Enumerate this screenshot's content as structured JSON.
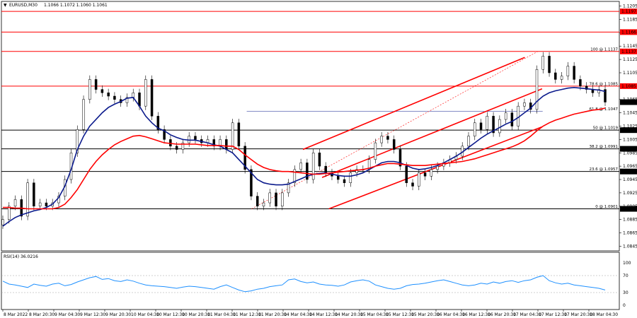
{
  "chart_data": {
    "type": "line",
    "header": {
      "symbol": "EURUSD,M30",
      "ohlc": [
        "1.1066",
        "1.1072",
        "1.1060",
        "1.1061"
      ],
      "current_price": 1.1061,
      "current_price_label": "1.1061"
    },
    "price_axis": {
      "ylim": [
        1.0838,
        1.1212
      ],
      "ticks": [
        "1.1205",
        "1.1185",
        "1.1165",
        "1.1145",
        "1.1125",
        "1.1105",
        "1.1085",
        "1.1065",
        "1.1045",
        "1.1025",
        "1.1005",
        "1.0985",
        "1.0965",
        "1.0945",
        "1.0925",
        "1.0905",
        "1.0885",
        "1.0865",
        "1.0845"
      ]
    },
    "time_axis": {
      "ticks": [
        "8 Mar 2022",
        "8 Mar 20:30",
        "9 Mar 04:30",
        "9 Mar 12:30",
        "9 Mar 20:30",
        "10 Mar 04:30",
        "10 Mar 12:30",
        "10 Mar 20:30",
        "11 Mar 04:30",
        "11 Mar 12:30",
        "11 Mar 20:30",
        "14 Mar 04:30",
        "14 Mar 12:30",
        "14 Mar 20:30",
        "15 Mar 04:30",
        "15 Mar 12:30",
        "15 Mar 20:30",
        "16 Mar 04:30",
        "16 Mar 12:30",
        "16 Mar 20:30",
        "17 Mar 04:30",
        "17 Mar 12:30",
        "17 Mar 20:30",
        "18 Mar 04:30"
      ]
    },
    "horizontal_levels": [
      {
        "price": 1.1197,
        "label": "1.1197",
        "color": "#ff0000"
      },
      {
        "price": 1.1166,
        "label": "1.1166",
        "color": "#ff0000"
      },
      {
        "price": 1.1137,
        "label": "1.1137",
        "color": "#ff0000"
      },
      {
        "price": 1.1085,
        "label": "1.1085",
        "color": "#ff0000"
      },
      {
        "price": 1.1019,
        "label": "1.1019",
        "color": "#000000"
      },
      {
        "price": 1.0991,
        "label": "1.0991",
        "color": "#000000"
      },
      {
        "price": 1.0957,
        "label": "1.0957",
        "color": "#000000"
      },
      {
        "price": 1.0901,
        "label": "1.0901",
        "color": "#000000"
      }
    ],
    "fibonacci": {
      "color": "#ff0000",
      "levels": [
        {
          "label": "100 @ 1.1137",
          "price": 1.1137
        },
        {
          "label": "78.6 @ 1.1085",
          "price": 1.1085
        },
        {
          "label": "61.8 @ 1.1047",
          "price": 1.1047
        },
        {
          "label": "50 @ 1.1019",
          "price": 1.1019
        },
        {
          "label": "38.2 @ 1.0991",
          "price": 1.0991
        },
        {
          "label": "23.6 @ 1.0957",
          "price": 1.0957
        },
        {
          "label": "0 @ 1.0901",
          "price": 1.0901
        }
      ]
    },
    "series": [
      {
        "kind": "candles",
        "color": "#000000",
        "close": [
          1.0885,
          1.0905,
          1.0915,
          1.089,
          1.094,
          1.0905,
          1.091,
          1.0905,
          1.091,
          1.092,
          1.0945,
          1.0985,
          1.102,
          1.1065,
          1.1095,
          1.108,
          1.1075,
          1.107,
          1.1065,
          1.106,
          1.1068,
          1.1075,
          1.1055,
          1.1095,
          1.104,
          1.102,
          1.1005,
          1.0995,
          1.099,
          1.1,
          1.101,
          1.1005,
          1.1,
          1.1005,
          1.0995,
          1.1005,
          1.099,
          1.103,
          1.0995,
          1.096,
          1.092,
          1.0905,
          1.091,
          1.0925,
          1.0905,
          1.0925,
          1.094,
          1.096,
          1.097,
          1.0945,
          1.0985,
          1.0965,
          1.0955,
          1.095,
          1.0945,
          1.094,
          1.0955,
          1.096,
          1.096,
          1.0975,
          1.1,
          1.101,
          1.1005,
          1.099,
          1.0965,
          1.094,
          1.0935,
          1.0955,
          1.095,
          1.096,
          1.0965,
          1.097,
          1.0975,
          1.098,
          1.0995,
          1.101,
          1.103,
          1.102,
          1.104,
          1.1015,
          1.1035,
          1.1045,
          1.1025,
          1.1055,
          1.106,
          1.105,
          1.111,
          1.113,
          1.1105,
          1.1095,
          1.11,
          1.1115,
          1.1095,
          1.1085,
          1.108,
          1.1075,
          1.108,
          1.1061
        ]
      },
      {
        "kind": "moving-average",
        "color": "#0b1a8c",
        "values": [
          1.0875,
          1.0882,
          1.0888,
          1.0892,
          1.0895,
          1.0898,
          1.09,
          1.0903,
          1.0908,
          1.0918,
          1.0935,
          1.096,
          1.099,
          1.101,
          1.1025,
          1.1035,
          1.1045,
          1.1053,
          1.1058,
          1.1062,
          1.1067,
          1.1068,
          1.1055,
          1.104,
          1.103,
          1.1022,
          1.1018,
          1.1012,
          1.1008,
          1.1005,
          1.1004,
          1.1004,
          1.1002,
          1.1,
          1.0997,
          1.0995,
          1.099,
          1.0985,
          1.0975,
          1.0965,
          1.0955,
          1.0945,
          1.094,
          1.0938,
          1.0937,
          1.0937,
          1.0938,
          1.0942,
          1.0946,
          1.095,
          1.0953,
          1.0954,
          1.0955,
          1.0953,
          1.0951,
          1.095,
          1.095,
          1.0952,
          1.0955,
          1.096,
          1.0965,
          1.097,
          1.0972,
          1.0972,
          1.097,
          1.0966,
          1.0962,
          1.096,
          1.0961,
          1.0963,
          1.0966,
          1.097,
          1.0975,
          1.098,
          1.0986,
          1.0993,
          1.1,
          1.1007,
          1.1013,
          1.1018,
          1.1023,
          1.1028,
          1.1032,
          1.1038,
          1.1045,
          1.1052,
          1.1062,
          1.107,
          1.1075,
          1.1078,
          1.108,
          1.1082,
          1.1083,
          1.1082,
          1.1081,
          1.108,
          1.1079,
          1.1077
        ]
      },
      {
        "kind": "moving-average",
        "color": "#ff0000",
        "values": [
          1.0903,
          1.0903,
          1.0902,
          1.0902,
          1.0901,
          1.0901,
          1.0901,
          1.0901,
          1.0901,
          1.0903,
          1.0908,
          1.0918,
          1.093,
          1.0945,
          1.096,
          1.0972,
          1.0982,
          1.099,
          1.0997,
          1.1002,
          1.1006,
          1.101,
          1.1011,
          1.1009,
          1.1006,
          1.1003,
          1.1,
          1.0999,
          1.0998,
          1.0998,
          1.0998,
          1.0998,
          1.0997,
          1.0996,
          1.0996,
          1.0996,
          1.0995,
          1.0995,
          1.099,
          1.0982,
          1.0975,
          1.0968,
          1.0963,
          1.096,
          1.0958,
          1.0957,
          1.0957,
          1.0956,
          1.0955,
          1.0954,
          1.0953,
          1.0953,
          1.0954,
          1.0955,
          1.0956,
          1.0957,
          1.0958,
          1.0959,
          1.096,
          1.0962,
          1.0965,
          1.0967,
          1.0969,
          1.0969,
          1.0968,
          1.0967,
          1.0966,
          1.0966,
          1.0966,
          1.0967,
          1.0968,
          1.0969,
          1.097,
          1.0971,
          1.0972,
          1.0974,
          1.0976,
          1.0979,
          1.0982,
          1.0985,
          1.0988,
          1.0991,
          1.0994,
          1.0998,
          1.1003,
          1.101,
          1.1018,
          1.1025,
          1.103,
          1.1034,
          1.1037,
          1.104,
          1.1043,
          1.1045,
          1.1047,
          1.1049,
          1.105,
          1.1052
        ]
      }
    ],
    "channels": {
      "color": "#ff0000",
      "lines": [
        {
          "from": [
            0.488,
            1.099
          ],
          "to": [
            0.847,
            1.1128
          ]
        },
        {
          "from": [
            0.519,
            1.0948
          ],
          "to": [
            0.875,
            1.1081
          ]
        },
        {
          "from": [
            0.53,
            1.0901
          ],
          "to": [
            0.875,
            1.1024
          ]
        }
      ]
    },
    "fib_diagonal": {
      "from": [
        0.405,
        1.0901
      ],
      "to": [
        0.868,
        1.1137
      ]
    },
    "fib_hline": {
      "price": 1.1047,
      "from": 0.397,
      "to": 0.876
    },
    "rsi": {
      "label": "RSI(14) 36.0216",
      "ylim": [
        0,
        100
      ],
      "ticks": [
        "100",
        "70",
        "30",
        "0"
      ],
      "levels": [
        70,
        30
      ],
      "color": "#1e90ff",
      "values": [
        57,
        50,
        48,
        45,
        42,
        50,
        47,
        45,
        50,
        52,
        46,
        49,
        55,
        60,
        65,
        68,
        61,
        63,
        58,
        56,
        60,
        57,
        52,
        48,
        46,
        45,
        44,
        42,
        40,
        43,
        45,
        44,
        42,
        40,
        38,
        44,
        48,
        42,
        36,
        32,
        34,
        38,
        40,
        44,
        46,
        48,
        60,
        62,
        56,
        53,
        55,
        50,
        48,
        47,
        45,
        48,
        55,
        58,
        60,
        57,
        48,
        44,
        40,
        38,
        40,
        46,
        49,
        50,
        52,
        55,
        58,
        60,
        56,
        52,
        48,
        46,
        48,
        52,
        50,
        55,
        52,
        56,
        58,
        54,
        58,
        60,
        66,
        70,
        58,
        53,
        50,
        52,
        48,
        46,
        44,
        42,
        40,
        36
      ]
    }
  }
}
